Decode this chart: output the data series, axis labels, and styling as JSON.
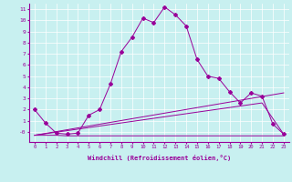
{
  "xlabel": "Windchill (Refroidissement éolien,°C)",
  "bg_color": "#c8f0f0",
  "line_color": "#990099",
  "xlim": [
    -0.5,
    23.5
  ],
  "ylim": [
    -0.9,
    11.5
  ],
  "xticks": [
    0,
    1,
    2,
    3,
    4,
    5,
    6,
    7,
    8,
    9,
    10,
    11,
    12,
    13,
    14,
    15,
    16,
    17,
    18,
    19,
    20,
    21,
    22,
    23
  ],
  "yticks": [
    0,
    1,
    2,
    3,
    4,
    5,
    6,
    7,
    8,
    9,
    10,
    11
  ],
  "ytick_labels": [
    "-0",
    "1",
    "2",
    "3",
    "4",
    "5",
    "6",
    "7",
    "8",
    "9",
    "10",
    "11"
  ],
  "series": [
    {
      "x": [
        0,
        1,
        2,
        3,
        4,
        5,
        6,
        7,
        8,
        9,
        10,
        11,
        12,
        13,
        14,
        15,
        16,
        17,
        18,
        19,
        20,
        21,
        22,
        23
      ],
      "y": [
        2.0,
        0.8,
        -0.1,
        -0.2,
        -0.1,
        1.5,
        2.0,
        4.3,
        7.2,
        8.5,
        10.2,
        9.8,
        11.2,
        10.5,
        9.5,
        6.5,
        5.0,
        4.8,
        3.6,
        2.6,
        3.5,
        3.2,
        0.7,
        -0.2
      ],
      "marker": true
    },
    {
      "x": [
        0,
        2,
        3,
        4,
        5,
        6,
        7,
        8,
        9,
        10,
        11,
        12,
        13,
        14,
        15,
        16,
        17,
        18,
        19,
        20,
        21,
        22,
        23
      ],
      "y": [
        -0.3,
        -0.3,
        -0.35,
        -0.35,
        -0.35,
        -0.35,
        -0.35,
        -0.35,
        -0.35,
        -0.35,
        -0.35,
        -0.35,
        -0.35,
        -0.35,
        -0.35,
        -0.35,
        -0.35,
        -0.35,
        -0.35,
        -0.35,
        -0.35,
        -0.35,
        -0.35
      ],
      "marker": false
    },
    {
      "x": [
        0,
        23
      ],
      "y": [
        -0.3,
        3.5
      ],
      "marker": false
    },
    {
      "x": [
        0,
        21,
        23
      ],
      "y": [
        -0.3,
        2.6,
        -0.2
      ],
      "marker": false
    }
  ]
}
